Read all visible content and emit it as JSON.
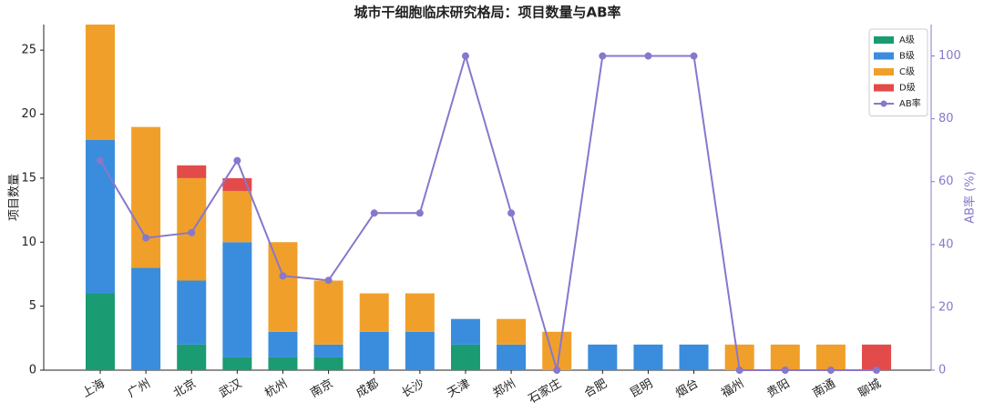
{
  "chart_data": {
    "type": "stacked-bar-line",
    "title": "城市干细胞临床研究格局：项目数量与AB率",
    "ylabel": "项目数量",
    "y2label": "AB率 (%)",
    "categories": [
      "上海",
      "广州",
      "北京",
      "武汉",
      "杭州",
      "南京",
      "成都",
      "长沙",
      "天津",
      "郑州",
      "石家庄",
      "合肥",
      "昆明",
      "烟台",
      "福州",
      "贵阳",
      "南通",
      "聊城"
    ],
    "series": [
      {
        "name": "A级",
        "color": "#1a9b72",
        "type": "bar",
        "values": [
          6,
          0,
          2,
          1,
          1,
          1,
          0,
          0,
          2,
          0,
          0,
          0,
          0,
          0,
          0,
          0,
          0,
          0
        ]
      },
      {
        "name": "B级",
        "color": "#3a8ddd",
        "type": "bar",
        "values": [
          12,
          8,
          5,
          9,
          2,
          1,
          3,
          3,
          2,
          2,
          0,
          2,
          2,
          2,
          0,
          0,
          0,
          0
        ]
      },
      {
        "name": "C级",
        "color": "#f0a02a",
        "type": "bar",
        "values": [
          9,
          11,
          8,
          4,
          7,
          5,
          3,
          3,
          0,
          2,
          3,
          0,
          0,
          0,
          2,
          2,
          2,
          0
        ]
      },
      {
        "name": "D级",
        "color": "#e34a4a",
        "type": "bar",
        "values": [
          0,
          0,
          1,
          1,
          0,
          0,
          0,
          0,
          0,
          0,
          0,
          0,
          0,
          0,
          0,
          0,
          0,
          2
        ]
      },
      {
        "name": "AB率",
        "color": "#8877cc",
        "type": "line",
        "axis": "y2",
        "values": [
          66.7,
          42.1,
          43.8,
          66.7,
          30,
          28.6,
          50,
          50,
          100,
          50,
          0,
          100,
          100,
          100,
          0,
          0,
          0,
          0
        ]
      }
    ],
    "ylim": [
      0,
      27
    ],
    "yticks": [
      0,
      5,
      10,
      15,
      20,
      25
    ],
    "y2lim": [
      0,
      110
    ],
    "y2ticks": [
      0,
      20,
      40,
      60,
      80,
      100
    ],
    "legend": "upper right"
  }
}
